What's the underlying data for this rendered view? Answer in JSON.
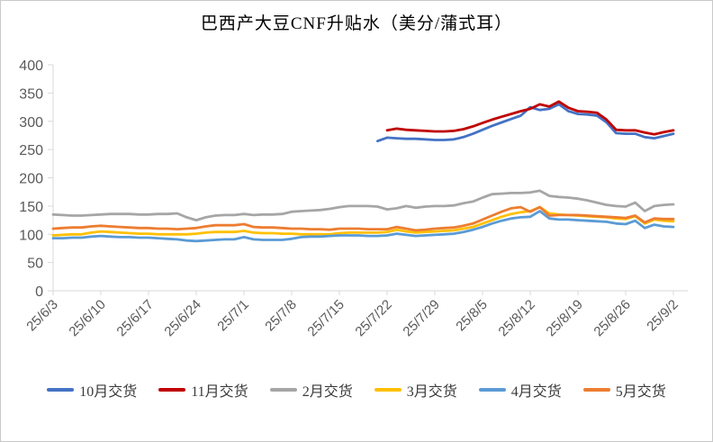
{
  "chart_data": {
    "type": "line",
    "title": "巴西产大豆CNF升贴水（美分/蒲式耳）",
    "xlabel": "",
    "ylabel": "",
    "ylim": [
      0,
      400
    ],
    "ytick_step": 50,
    "yticks": [
      0,
      50,
      100,
      150,
      200,
      250,
      300,
      350,
      400
    ],
    "grid": false,
    "legend_position": "bottom",
    "xtick_labels": [
      "25/6/3",
      "25/6/10",
      "25/6/17",
      "25/6/24",
      "25/7/1",
      "25/7/8",
      "25/7/15",
      "25/7/22",
      "25/7/29",
      "25/8/5",
      "25/8/12",
      "25/8/19",
      "25/8/26",
      "25/9/2"
    ],
    "x": [
      "25/6/3",
      "25/6/4",
      "25/6/5",
      "25/6/6",
      "25/6/9",
      "25/6/10",
      "25/6/11",
      "25/6/12",
      "25/6/13",
      "25/6/16",
      "25/6/17",
      "25/6/18",
      "25/6/19",
      "25/6/20",
      "25/6/23",
      "25/6/24",
      "25/6/25",
      "25/6/26",
      "25/6/27",
      "25/6/30",
      "25/7/1",
      "25/7/2",
      "25/7/3",
      "25/7/4",
      "25/7/7",
      "25/7/8",
      "25/7/9",
      "25/7/10",
      "25/7/11",
      "25/7/14",
      "25/7/15",
      "25/7/16",
      "25/7/17",
      "25/7/18",
      "25/7/21",
      "25/7/22",
      "25/7/23",
      "25/7/24",
      "25/7/25",
      "25/7/28",
      "25/7/29",
      "25/7/30",
      "25/7/31",
      "25/8/1",
      "25/8/4",
      "25/8/5",
      "25/8/6",
      "25/8/7",
      "25/8/8",
      "25/8/11",
      "25/8/12",
      "25/8/13",
      "25/8/14",
      "25/8/15",
      "25/8/18",
      "25/8/19",
      "25/8/20",
      "25/8/21",
      "25/8/22",
      "25/8/25",
      "25/8/26",
      "25/8/27",
      "25/8/28",
      "25/8/29",
      "25/9/1",
      "25/9/2"
    ],
    "series": [
      {
        "name": "10月交货",
        "color": "#4472C4",
        "values": [
          null,
          null,
          null,
          null,
          null,
          null,
          null,
          null,
          null,
          null,
          null,
          null,
          null,
          null,
          null,
          null,
          null,
          null,
          null,
          null,
          null,
          null,
          null,
          null,
          null,
          null,
          null,
          null,
          null,
          null,
          null,
          null,
          null,
          null,
          265,
          271,
          270,
          269,
          269,
          268,
          267,
          267,
          268,
          272,
          278,
          285,
          292,
          298,
          304,
          310,
          325,
          320,
          322,
          330,
          318,
          313,
          312,
          310,
          298,
          279,
          278,
          278,
          272,
          270,
          274,
          278
        ]
      },
      {
        "name": "11月交货",
        "color": "#C00000",
        "values": [
          null,
          null,
          null,
          null,
          null,
          null,
          null,
          null,
          null,
          null,
          null,
          null,
          null,
          null,
          null,
          null,
          null,
          null,
          null,
          null,
          null,
          null,
          null,
          null,
          null,
          null,
          null,
          null,
          null,
          null,
          null,
          null,
          null,
          null,
          null,
          284,
          287,
          285,
          284,
          283,
          282,
          282,
          283,
          286,
          291,
          297,
          303,
          308,
          313,
          318,
          322,
          330,
          326,
          335,
          324,
          318,
          317,
          315,
          303,
          285,
          284,
          284,
          280,
          277,
          281,
          284
        ]
      },
      {
        "name": "2月交货",
        "color": "#A6A6A6",
        "values": [
          135,
          134,
          133,
          133,
          134,
          135,
          136,
          136,
          136,
          135,
          135,
          136,
          136,
          137,
          130,
          125,
          130,
          133,
          134,
          134,
          136,
          134,
          135,
          135,
          136,
          140,
          141,
          142,
          143,
          145,
          148,
          150,
          150,
          150,
          149,
          144,
          146,
          150,
          147,
          149,
          150,
          150,
          151,
          155,
          158,
          165,
          171,
          172,
          173,
          173,
          174,
          177,
          168,
          166,
          165,
          163,
          160,
          156,
          152,
          150,
          149,
          156,
          141,
          150,
          152,
          153
        ]
      },
      {
        "name": "3月交货",
        "color": "#FFC000",
        "values": [
          98,
          99,
          100,
          100,
          103,
          105,
          104,
          103,
          102,
          101,
          101,
          100,
          100,
          100,
          100,
          101,
          103,
          104,
          104,
          104,
          106,
          103,
          102,
          102,
          101,
          101,
          100,
          100,
          100,
          100,
          102,
          103,
          103,
          103,
          103,
          104,
          108,
          105,
          103,
          104,
          105,
          106,
          107,
          110,
          113,
          119,
          125,
          131,
          136,
          139,
          141,
          148,
          137,
          135,
          134,
          133,
          132,
          131,
          130,
          128,
          127,
          132,
          119,
          126,
          124,
          123
        ]
      },
      {
        "name": "4月交货",
        "color": "#5B9BD5",
        "values": [
          93,
          93,
          94,
          94,
          96,
          97,
          96,
          95,
          95,
          94,
          94,
          93,
          92,
          91,
          89,
          88,
          89,
          90,
          91,
          91,
          95,
          91,
          90,
          90,
          90,
          92,
          95,
          96,
          96,
          97,
          98,
          98,
          98,
          97,
          97,
          98,
          101,
          99,
          97,
          98,
          99,
          100,
          101,
          104,
          108,
          113,
          119,
          124,
          128,
          130,
          131,
          141,
          128,
          126,
          126,
          125,
          124,
          123,
          122,
          119,
          118,
          124,
          111,
          117,
          114,
          113
        ]
      },
      {
        "name": "5月交货",
        "color": "#ED7D31",
        "values": [
          110,
          111,
          112,
          112,
          114,
          115,
          114,
          113,
          112,
          111,
          111,
          110,
          110,
          109,
          110,
          111,
          114,
          116,
          116,
          116,
          118,
          113,
          112,
          112,
          111,
          110,
          110,
          109,
          109,
          108,
          110,
          110,
          110,
          109,
          109,
          109,
          113,
          110,
          107,
          108,
          110,
          111,
          112,
          115,
          119,
          126,
          133,
          140,
          146,
          148,
          140,
          148,
          133,
          134,
          134,
          134,
          133,
          132,
          131,
          130,
          129,
          133,
          121,
          128,
          127,
          127
        ]
      }
    ],
    "axis_color": "#D9D9D9",
    "tick_label_color": "#595959"
  }
}
